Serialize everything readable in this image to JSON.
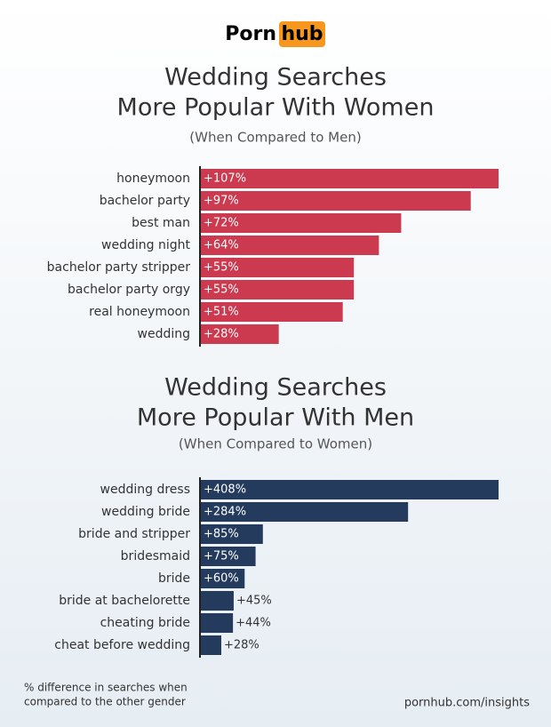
{
  "logo": {
    "left": "Porn",
    "right": "hub"
  },
  "chart_data": [
    {
      "type": "bar",
      "orientation": "horizontal",
      "title": [
        "Wedding Searches",
        "More Popular With Women"
      ],
      "subtitle": "(When Compared to Men)",
      "categories": [
        "honeymoon",
        "bachelor party",
        "best man",
        "wedding night",
        "bachelor party stripper",
        "bachelor party orgy",
        "real honeymoon",
        "wedding"
      ],
      "values": [
        107,
        97,
        72,
        64,
        55,
        55,
        51,
        28
      ],
      "value_labels": [
        "+107%",
        "+97%",
        "+72%",
        "+64%",
        "+55%",
        "+55%",
        "+51%",
        "+28%"
      ],
      "color": "#cc3a50"
    },
    {
      "type": "bar",
      "orientation": "horizontal",
      "title": [
        "Wedding Searches",
        "More Popular With Men"
      ],
      "subtitle": "(When Compared to Women)",
      "categories": [
        "wedding dress",
        "wedding bride",
        "bride and stripper",
        "bridesmaid",
        "bride",
        "bride at bachelorette",
        "cheating bride",
        "cheat before wedding"
      ],
      "values": [
        408,
        284,
        85,
        75,
        60,
        45,
        44,
        28
      ],
      "value_labels": [
        "+408%",
        "+284%",
        "+85%",
        "+75%",
        "+60%",
        "+45%",
        "+44%",
        "+28%"
      ],
      "color": "#243b5e"
    }
  ],
  "footnote": [
    "% difference in searches when",
    "compared to the other gender"
  ],
  "source": "pornhub.com/insights"
}
